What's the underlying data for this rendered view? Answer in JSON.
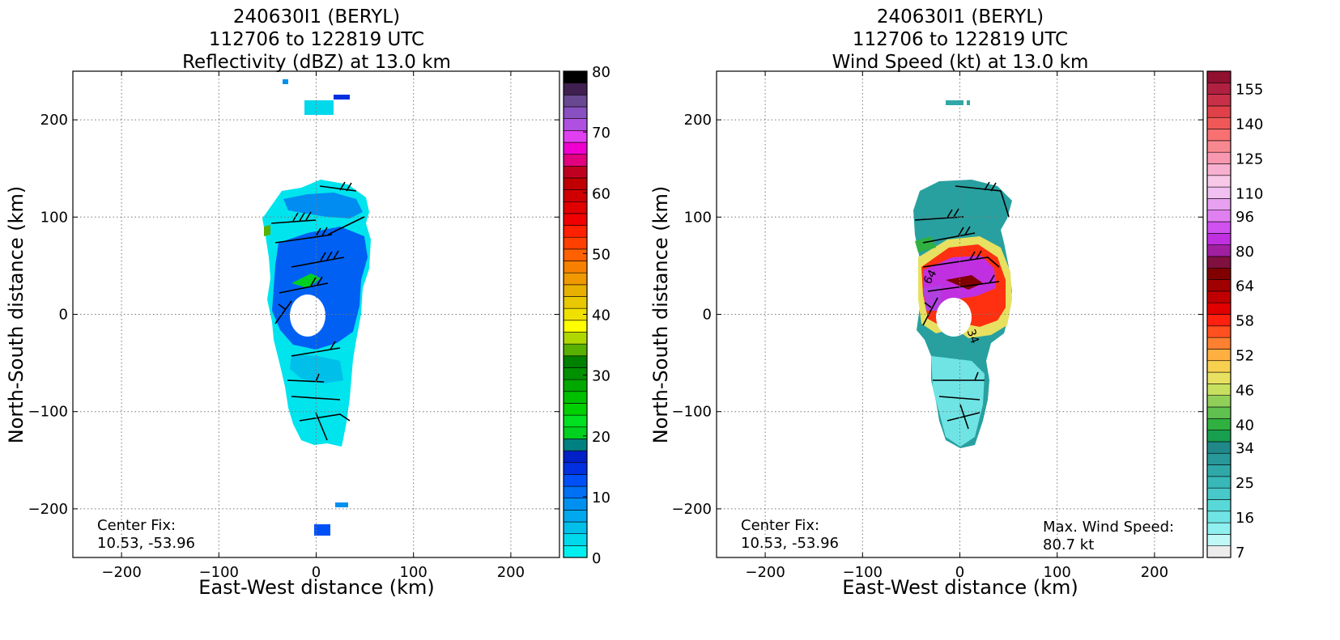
{
  "panels": [
    {
      "id": "reflectivity",
      "title_lines": [
        "240630I1 (BERYL)",
        "112706 to 122819 UTC",
        "Reflectivity (dBZ) at 13.0 km"
      ],
      "center_fix_label": "Center Fix:",
      "center_fix_value": "10.53, -53.96",
      "max_label": "",
      "max_value": ""
    },
    {
      "id": "windspeed",
      "title_lines": [
        "240630I1 (BERYL)",
        "112706 to 122819 UTC",
        "Wind Speed (kt) at 13.0 km"
      ],
      "center_fix_label": "Center Fix:",
      "center_fix_value": "10.53, -53.96",
      "max_label": "Max. Wind Speed:",
      "max_value": "80.7 kt"
    }
  ],
  "chart_data": [
    {
      "type": "heatmap",
      "title": "240630I1 (BERYL) 112706 to 122819 UTC Reflectivity (dBZ) at 13.0 km",
      "xlabel": "East-West distance (km)",
      "ylabel": "North-South distance (km)",
      "xlim": [
        -250,
        250
      ],
      "ylim": [
        -250,
        250
      ],
      "xticks": [
        -200,
        -100,
        0,
        100,
        200
      ],
      "yticks": [
        -200,
        -100,
        0,
        100,
        200
      ],
      "xtick_labels": [
        "−200",
        "−100",
        "0",
        "100",
        "200"
      ],
      "ytick_labels": [
        "−200",
        "−100",
        "0",
        "100",
        "200"
      ],
      "grid": true,
      "colorbar": {
        "min": 0,
        "max": 80,
        "tick_values": [
          0,
          10,
          20,
          30,
          40,
          50,
          60,
          70,
          80
        ],
        "tick_labels": [
          "0",
          "10",
          "20",
          "30",
          "40",
          "50",
          "60",
          "70",
          "80"
        ],
        "colors": [
          "#00f0f0",
          "#00d8ec",
          "#00c0ea",
          "#00a8ee",
          "#0090f0",
          "#0070f4",
          "#0050f8",
          "#0030e0",
          "#0020c8",
          "#008080",
          "#00d020",
          "#00e020",
          "#00d000",
          "#00c000",
          "#00a800",
          "#009000",
          "#008000",
          "#58b000",
          "#b0d800",
          "#ffff00",
          "#f0e000",
          "#e8c800",
          "#e8b000",
          "#f09800",
          "#f88000",
          "#ff6000",
          "#ff4000",
          "#ff2000",
          "#f00000",
          "#e00000",
          "#d00000",
          "#c00000",
          "#c00020",
          "#e00080",
          "#f000d0",
          "#e040f0",
          "#b050e0",
          "#8850c0",
          "#684890",
          "#402050",
          "#000000"
        ]
      },
      "approx_echo_regions": [
        {
          "desc": "main storm area",
          "x_range": [
            -55,
            55
          ],
          "y_range": [
            -135,
            145
          ],
          "dominant_dBZ": "5-12"
        },
        {
          "desc": "northern fragment",
          "x_range": [
            -10,
            35
          ],
          "y_range": [
            205,
            225
          ]
        },
        {
          "desc": "southern fragment",
          "x_range": [
            -5,
            15
          ],
          "y_range": [
            -230,
            -220
          ]
        }
      ]
    },
    {
      "type": "heatmap",
      "title": "240630I1 (BERYL) 112706 to 122819 UTC Wind Speed (kt) at 13.0 km",
      "xlabel": "East-West distance (km)",
      "ylabel": "North-South distance (km)",
      "xlim": [
        -250,
        250
      ],
      "ylim": [
        -250,
        250
      ],
      "xticks": [
        -200,
        -100,
        0,
        100,
        200
      ],
      "yticks": [
        -200,
        -100,
        0,
        100,
        200
      ],
      "xtick_labels": [
        "−200",
        "−100",
        "0",
        "100",
        "200"
      ],
      "ytick_labels": [
        "−200",
        "−100",
        "0",
        "100",
        "200"
      ],
      "grid": true,
      "contour_labels": [
        "64",
        "34"
      ],
      "max_wind_speed_kt": 80.7,
      "colorbar": {
        "tick_labels": [
          "7",
          "16",
          "25",
          "34",
          "40",
          "46",
          "52",
          "58",
          "64",
          "80",
          "96",
          "110",
          "125",
          "140",
          "155"
        ],
        "colors": [
          "#ececec",
          "#c0f8f8",
          "#90f0f0",
          "#70e4e4",
          "#58d8d8",
          "#48c8c8",
          "#38b8b8",
          "#30a8a8",
          "#289898",
          "#208888",
          "#18a050",
          "#30b040",
          "#60c050",
          "#90d058",
          "#c8e060",
          "#e8e060",
          "#f8d050",
          "#ffb040",
          "#ff8030",
          "#ff5020",
          "#ff2010",
          "#e00000",
          "#c00000",
          "#a00000",
          "#800000",
          "#801040",
          "#a020a0",
          "#c030e0",
          "#d050f0",
          "#e080f0",
          "#e8a0f0",
          "#f0c0f0",
          "#f8c8e8",
          "#f8b0d0",
          "#f898b0",
          "#f88890",
          "#f87070",
          "#f05858",
          "#e04048",
          "#c83048",
          "#b02040",
          "#901030"
        ]
      },
      "approx_echo_regions": [
        {
          "desc": "outer cyan/teal field",
          "x_range": [
            -50,
            50
          ],
          "y_range": [
            -135,
            135
          ]
        },
        {
          "desc": "eyewall max winds (64+ kt, purple)",
          "x_range": [
            -45,
            30
          ],
          "y_range": [
            0,
            45
          ]
        }
      ]
    }
  ]
}
